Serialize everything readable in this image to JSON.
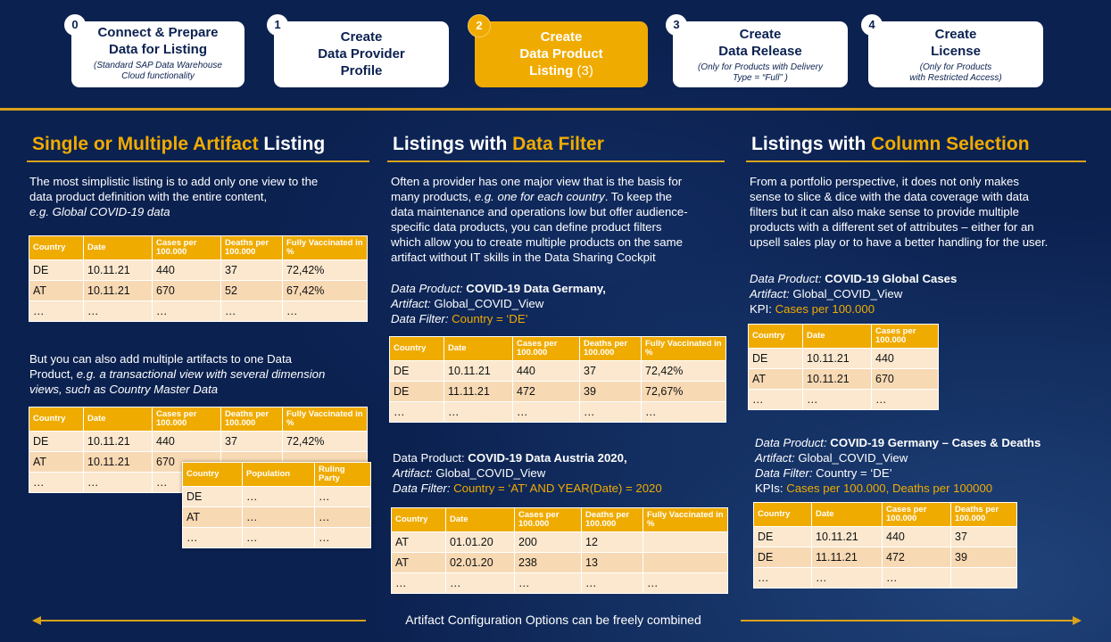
{
  "steps": [
    {
      "num": "0",
      "title_1": "Connect & Prepare",
      "title_2": "Data for Listing",
      "sub_1": "(Standard SAP Data Warehouse",
      "sub_2": "Cloud functionality"
    },
    {
      "num": "1",
      "title_1": "Create",
      "title_2": "Data Provider",
      "title_3": "Profile"
    },
    {
      "num": "2",
      "title_1": "Create",
      "title_2": "Data Product",
      "title_3": "Listing",
      "title_3_suffix": " (3)"
    },
    {
      "num": "3",
      "title_1": "Create",
      "title_2": "Data Release",
      "sub_1": "(Only for Products with Delivery",
      "sub_2": "Type = “Full” )"
    },
    {
      "num": "4",
      "title_1": "Create",
      "title_2": "License",
      "sub_1": "(Only for Products",
      "sub_2": "with Restricted Access)"
    }
  ],
  "col1": {
    "title_highlight": "Single or Multiple Artifact",
    "title_rest": " Listing",
    "para1_line1": "The most simplistic listing is to add only one view to the",
    "para1_line2": "data product definition with the entire content,",
    "para1_line3": "e.g. Global COVID-19 data",
    "para2_line1": "But you can also add multiple artifacts to one Data",
    "para2_line2_a": "Product, ",
    "para2_line2_b": "e.g. a transactional view with several dimension",
    "para2_line3": "views, such as Country Master Data",
    "table1": {
      "headers": [
        "Country",
        "Date",
        "Cases per 100.000",
        "Deaths per 100.000",
        "Fully Vaccinated in %"
      ],
      "rows": [
        [
          "DE",
          "10.11.21",
          "440",
          "37",
          "72,42%"
        ],
        [
          "AT",
          "10.11.21",
          "670",
          "52",
          "67,42%"
        ],
        [
          "…",
          "…",
          "…",
          "…",
          "…"
        ]
      ]
    },
    "table2": {
      "headers": [
        "Country",
        "Date",
        "Cases per 100.000",
        "Deaths per 100.000",
        "Fully Vaccinated in %"
      ],
      "rows": [
        [
          "DE",
          "10.11.21",
          "440",
          "37",
          "72,42%"
        ],
        [
          "AT",
          "10.11.21",
          "670",
          "",
          ""
        ],
        [
          "…",
          "…",
          "…",
          "",
          ""
        ]
      ]
    },
    "table3": {
      "headers": [
        "Country",
        "Population",
        "Ruling Party"
      ],
      "rows": [
        [
          "DE",
          "…",
          "…"
        ],
        [
          "AT",
          "…",
          "…"
        ],
        [
          "…",
          "…",
          "…"
        ]
      ]
    }
  },
  "col2": {
    "title_rest": "Listings with ",
    "title_highlight": "Data Filter",
    "p_l1": "Often a provider has one major view that is the basis for",
    "p_l2_a": "many products, ",
    "p_l2_b": "e.g. one for each country",
    "p_l2_c": ". To keep the",
    "p_l3": "data maintenance and operations low but offer audience-",
    "p_l4": "specific data products, you can define product filters",
    "p_l5": "which allow you to create multiple products on the same",
    "p_l6": "artifact without IT skills in the Data Sharing Cockpit",
    "prod1": {
      "dp_label": "Data Product: ",
      "dp_value": "COVID-19 Data Germany,",
      "art_label": "Artifact: ",
      "art_value": "Global_COVID_View",
      "filter_label": "Data Filter: ",
      "filter_value": "Country = ‘DE’"
    },
    "table1": {
      "headers": [
        "Country",
        "Date",
        "Cases per 100.000",
        "Deaths per 100.000",
        "Fully Vaccinated in %"
      ],
      "rows": [
        [
          "DE",
          "10.11.21",
          "440",
          "37",
          "72,42%"
        ],
        [
          "DE",
          "11.11.21",
          "472",
          "39",
          "72,67%"
        ],
        [
          "…",
          "…",
          "…",
          "…",
          "…"
        ]
      ]
    },
    "prod2": {
      "dp_label": "Data Product: ",
      "dp_value": "COVID-19 Data Austria 2020,",
      "art_label": "Artifact: ",
      "art_value": "Global_COVID_View",
      "filter_label": "Data Filter: ",
      "filter_value": "Country = ‘AT’ AND YEAR(Date) = 2020"
    },
    "table2": {
      "headers": [
        "Country",
        "Date",
        "Cases per 100.000",
        "Deaths per 100.000",
        "Fully Vaccinated in %"
      ],
      "rows": [
        [
          "AT",
          "01.01.20",
          "200",
          "12",
          ""
        ],
        [
          "AT",
          "02.01.20",
          "238",
          "13",
          ""
        ],
        [
          "…",
          "…",
          "…",
          "…",
          "…"
        ]
      ]
    }
  },
  "col3": {
    "title_rest": "Listings with ",
    "title_highlight": "Column Selection",
    "p_l1": "From a portfolio perspective, it does not only makes",
    "p_l2": "sense to slice & dice with the data coverage with data",
    "p_l3": "filters but it can also make sense to provide multiple",
    "p_l4": "products with a different set of attributes – either for an",
    "p_l5": "upsell sales play or to have a better handling for the user.",
    "prod1": {
      "dp_label": "Data Product: ",
      "dp_value": "COVID-19 Global Cases",
      "art_label": "Artifact: ",
      "art_value": "Global_COVID_View",
      "kpi_label": "KPI: ",
      "kpi_value": "Cases per 100.000"
    },
    "table1": {
      "headers": [
        "Country",
        "Date",
        "Cases per 100.000"
      ],
      "rows": [
        [
          "DE",
          "10.11.21",
          "440"
        ],
        [
          "AT",
          "10.11.21",
          "670"
        ],
        [
          "…",
          "…",
          "…"
        ]
      ]
    },
    "prod2": {
      "dp_label": "Data Product: ",
      "dp_value": "COVID-19 Germany – Cases & Deaths",
      "art_label": "Artifact: ",
      "art_value": "Global_COVID_View",
      "filter_label": "Data Filter: ",
      "filter_value": "Country = ‘DE’",
      "kpi_label": "KPIs: ",
      "kpi_value": "Cases per 100.000, Deaths per 100000"
    },
    "table2": {
      "headers": [
        "Country",
        "Date",
        "Cases per 100.000",
        "Deaths per 100.000"
      ],
      "rows": [
        [
          "DE",
          "10.11.21",
          "440",
          "37"
        ],
        [
          "DE",
          "11.11.21",
          "472",
          "39"
        ],
        [
          "…",
          "…",
          "…",
          ""
        ]
      ]
    }
  },
  "footer": "Artifact Configuration Options can be freely combined"
}
